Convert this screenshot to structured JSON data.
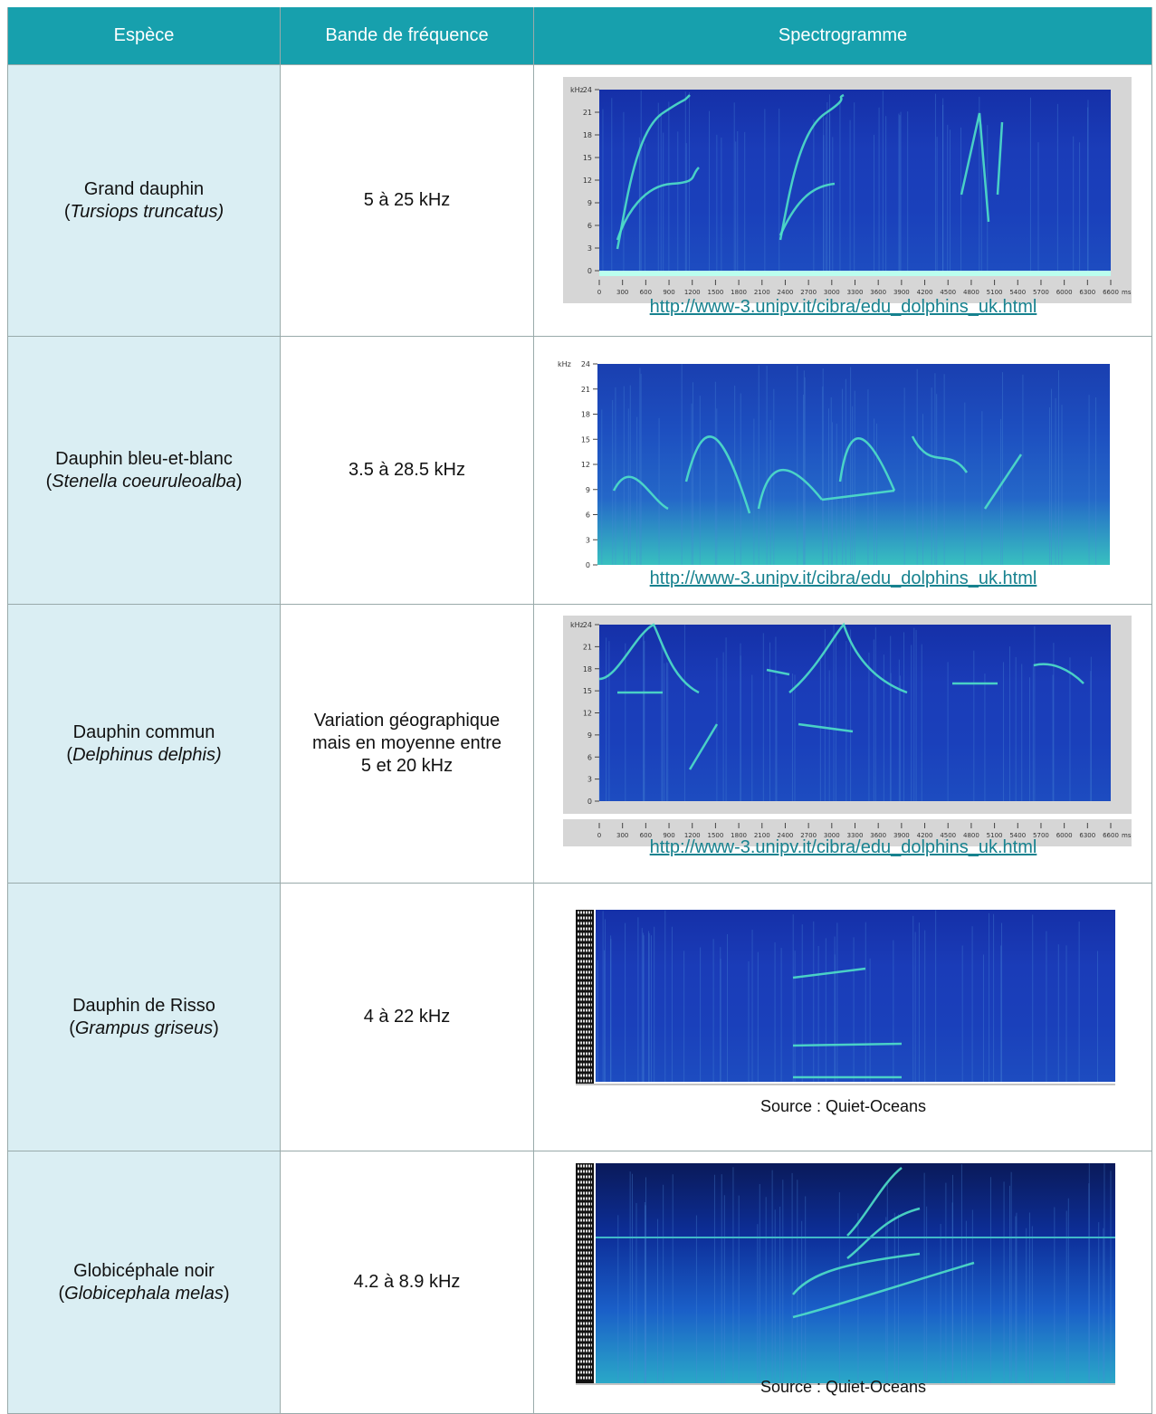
{
  "header": [
    "Espèce",
    "Bande de fréquence",
    "Spectrogramme"
  ],
  "rows": [
    {
      "common": "Grand dauphin",
      "latin": [
        {
          "text": "(",
          "italic": false
        },
        {
          "text": "Tursiops truncatus)",
          "italic": true
        }
      ],
      "band": [
        "5 à 25 kHz"
      ],
      "spectrogram": {
        "y_unit": "kHz",
        "yticks": [
          0,
          3,
          6,
          9,
          12,
          15,
          18,
          21,
          24
        ],
        "x_unit": "ms",
        "xticks": [
          0,
          300,
          600,
          900,
          1200,
          1500,
          1800,
          2100,
          2400,
          2700,
          3000,
          3300,
          3600,
          3900,
          4200,
          4500,
          4800,
          5100,
          5400,
          5700,
          6000,
          6300,
          6600
        ]
      },
      "source": "http://www-3.unipv.it/cibra/edu_dolphins_uk.html"
    },
    {
      "common": "Dauphin bleu-et-blanc",
      "latin": [
        {
          "text": "(",
          "italic": false
        },
        {
          "text": "Stenella coeuruleoalba",
          "italic": true
        },
        {
          "text": ")",
          "italic": false
        }
      ],
      "band": [
        "3.5 à 28.5 kHz"
      ],
      "spectrogram": {
        "y_unit": "kHz",
        "yticks": [
          0,
          3,
          6,
          9,
          12,
          15,
          18,
          21,
          24
        ]
      },
      "source": "http://www-3.unipv.it/cibra/edu_dolphins_uk.html"
    },
    {
      "common": "Dauphin commun",
      "latin": [
        {
          "text": "(",
          "italic": false
        },
        {
          "text": "Delphinus delphis)",
          "italic": true
        }
      ],
      "band": [
        "Variation géographique",
        "mais en moyenne entre",
        "5 et 20 kHz"
      ],
      "spectrogram": {
        "y_unit": "kHz",
        "yticks": [
          0,
          3,
          6,
          9,
          12,
          15,
          18,
          21,
          24
        ],
        "x_unit": "ms",
        "xticks": [
          0,
          300,
          600,
          900,
          1200,
          1500,
          1800,
          2100,
          2400,
          2700,
          3000,
          3300,
          3600,
          3900,
          4200,
          4500,
          4800,
          5100,
          5400,
          5700,
          6000,
          6300,
          6600
        ]
      },
      "source": "http://www-3.unipv.it/cibra/edu_dolphins_uk.html"
    },
    {
      "common": "Dauphin de Risso",
      "latin": [
        {
          "text": "(",
          "italic": false
        },
        {
          "text": "Grampus griseus",
          "italic": true
        },
        {
          "text": ")",
          "italic": false
        }
      ],
      "band": [
        "4 à 22 kHz"
      ],
      "source": "Source : Quiet-Oceans"
    },
    {
      "common": "Globicéphale noir",
      "latin": [
        {
          "text": "(",
          "italic": false
        },
        {
          "text": "Globicephala melas",
          "italic": true
        },
        {
          "text": ")",
          "italic": false
        }
      ],
      "band": [
        "4.2 à 8.9 kHz"
      ],
      "source": "Source : Quiet-Oceans"
    }
  ]
}
